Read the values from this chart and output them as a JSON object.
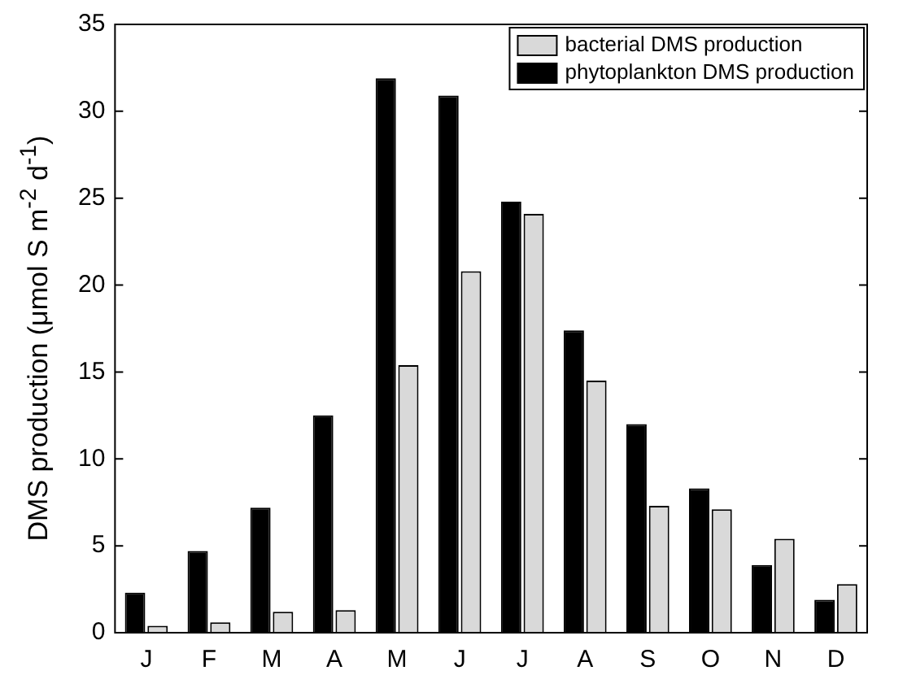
{
  "chart_data": {
    "type": "bar",
    "ylabel": "DMS production (μmol S m$^{-2}$ d$^{-1}$)",
    "categories": [
      "J",
      "F",
      "M",
      "A",
      "M",
      "J",
      "J",
      "A",
      "S",
      "O",
      "N",
      "D"
    ],
    "series": [
      {
        "name": "phytoplankton DMS production",
        "color": "#000000",
        "values": [
          2.3,
          4.7,
          7.2,
          12.5,
          31.9,
          30.9,
          24.8,
          17.4,
          12.0,
          8.3,
          3.9,
          1.9
        ]
      },
      {
        "name": "bacterial DMS production",
        "color": "#d9d9d9",
        "values": [
          0.4,
          0.6,
          1.2,
          1.3,
          15.4,
          20.8,
          24.1,
          14.5,
          7.3,
          7.1,
          5.4,
          2.8
        ]
      }
    ],
    "ylim": [
      0,
      35
    ],
    "yticks": [
      0,
      5,
      10,
      15,
      20,
      25,
      30,
      35
    ],
    "grid": false,
    "legend": "top right"
  }
}
